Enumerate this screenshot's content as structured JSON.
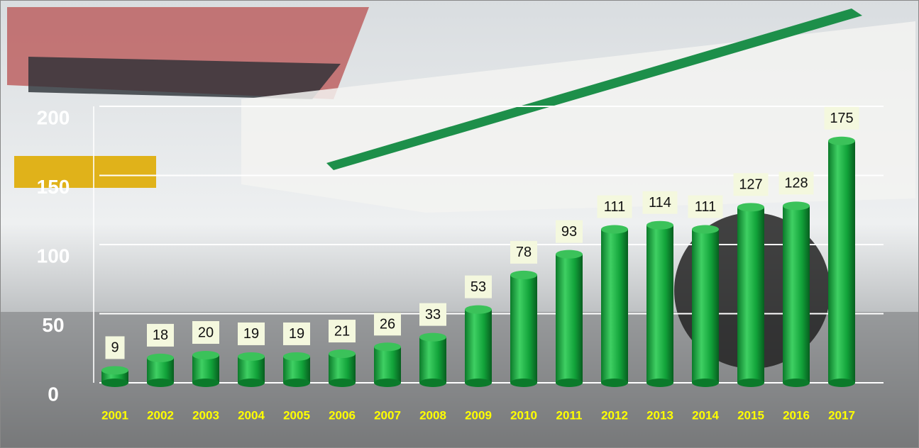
{
  "chart_data": {
    "type": "bar",
    "categories": [
      "2001",
      "2002",
      "2003",
      "2004",
      "2005",
      "2006",
      "2007",
      "2008",
      "2009",
      "2010",
      "2011",
      "2012",
      "2013",
      "2014",
      "2015",
      "2016",
      "2017"
    ],
    "values": [
      9,
      18,
      20,
      19,
      19,
      21,
      26,
      33,
      53,
      78,
      93,
      111,
      114,
      111,
      127,
      128,
      175
    ],
    "color": "#12a33a",
    "ylim": [
      0,
      200
    ],
    "yticks": [
      0,
      50,
      100,
      150,
      200
    ],
    "grid": true
  }
}
